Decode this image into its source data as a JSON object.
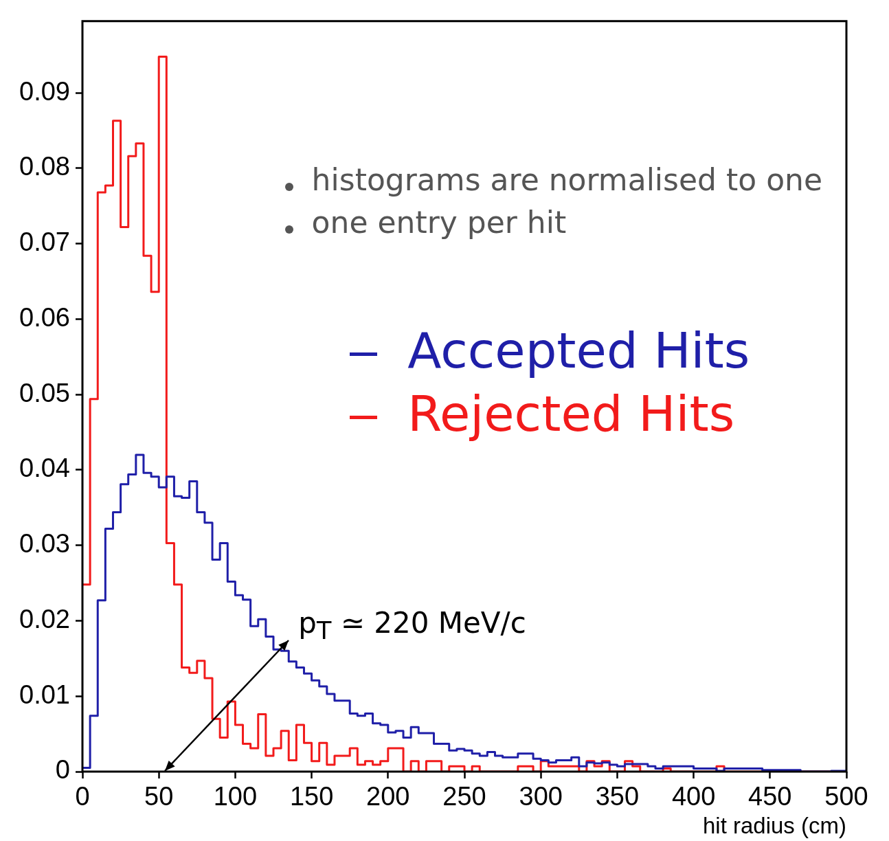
{
  "chart_data": {
    "type": "histogram",
    "xlabel": "hit radius (cm)",
    "bins": [
      0,
      5,
      10,
      15,
      20,
      25,
      30,
      35,
      40,
      45,
      50,
      55,
      60,
      65,
      70,
      75,
      80,
      85,
      90,
      95,
      100,
      105,
      110,
      115,
      120,
      125,
      130,
      135,
      140,
      145,
      150,
      155,
      160,
      165,
      170,
      175,
      180,
      185,
      190,
      195,
      200,
      205,
      210,
      215,
      220,
      225,
      230,
      235,
      240,
      245,
      250,
      255,
      260,
      265,
      270,
      275,
      280,
      285,
      290,
      295,
      300,
      305,
      310,
      315,
      320,
      325,
      330,
      335,
      340,
      345,
      350,
      355,
      360,
      365,
      370,
      375,
      380,
      385,
      390,
      395,
      400,
      405,
      410,
      415,
      420,
      425,
      430,
      435,
      440,
      445,
      450,
      455,
      460,
      465,
      470,
      475,
      480,
      485,
      490,
      495,
      500
    ],
    "series": [
      {
        "name": "Accepted Hits",
        "color": "#1f1fa8",
        "values": [
          0.0005,
          0.0074,
          0.0227,
          0.0322,
          0.0344,
          0.0381,
          0.0394,
          0.042,
          0.0396,
          0.0391,
          0.0377,
          0.0391,
          0.0365,
          0.0363,
          0.0385,
          0.0344,
          0.033,
          0.0281,
          0.0303,
          0.0252,
          0.0234,
          0.0228,
          0.0193,
          0.0202,
          0.0179,
          0.0162,
          0.016,
          0.0146,
          0.0138,
          0.013,
          0.0121,
          0.0113,
          0.0103,
          0.0094,
          0.0094,
          0.0077,
          0.0074,
          0.0077,
          0.0064,
          0.0062,
          0.0052,
          0.0054,
          0.0045,
          0.0059,
          0.0051,
          0.0051,
          0.0037,
          0.0037,
          0.0028,
          0.003,
          0.0028,
          0.0024,
          0.0021,
          0.0026,
          0.0021,
          0.0019,
          0.0019,
          0.0024,
          0.0024,
          0.0017,
          0.0015,
          0.0012,
          0.0015,
          0.0015,
          0.0019,
          0.0007,
          0.0012,
          0.0011,
          0.0012,
          0.0009,
          0.0007,
          0.001,
          0.001,
          0.001,
          0.0007,
          0.0004,
          0.0007,
          0.0007,
          0.0007,
          0.0007,
          0.0004,
          0.0004,
          0.0004,
          0.0001,
          0.0004,
          0.0004,
          0.0004,
          0.0004,
          0.0004,
          0.0002,
          0.0002,
          0.0002,
          0.0002,
          0.0002,
          0,
          0,
          0,
          0,
          0.0001,
          0.0001
        ]
      },
      {
        "name": "Rejected Hits",
        "color": "#f21b1b",
        "values": [
          0.0248,
          0.0494,
          0.0768,
          0.0777,
          0.0863,
          0.0722,
          0.0816,
          0.0833,
          0.0684,
          0.0636,
          0.0948,
          0.0303,
          0.0248,
          0.0138,
          0.0131,
          0.0147,
          0.0124,
          0.007,
          0.0045,
          0.0093,
          0.0062,
          0.0037,
          0.0031,
          0.0076,
          0.0021,
          0.0031,
          0.0054,
          0.0015,
          0.0062,
          0.0038,
          0.0014,
          0.0038,
          0.0009,
          0.0021,
          0.0021,
          0.0031,
          0.0009,
          0.0014,
          0.0009,
          0.0014,
          0.0031,
          0.0031,
          0,
          0.0014,
          0,
          0.0014,
          0.0014,
          0,
          0.0007,
          0.0007,
          0,
          0.0007,
          0,
          0,
          0,
          0,
          0,
          0.0007,
          0.0007,
          0,
          0.0014,
          0.0007,
          0.0007,
          0.0007,
          0.0007,
          0,
          0.0014,
          0.0007,
          0.0014,
          0,
          0,
          0.0014,
          0.0007,
          0,
          0,
          0,
          0.0004,
          0,
          0,
          0,
          0,
          0,
          0,
          0.0007,
          0,
          0,
          0,
          0,
          0,
          0,
          0,
          0,
          0,
          0,
          0,
          0,
          0,
          0,
          0,
          0
        ]
      }
    ],
    "xlim": [
      0,
      500
    ],
    "xticks": [
      0,
      50,
      100,
      150,
      200,
      250,
      300,
      350,
      400,
      450,
      500
    ],
    "ylim": [
      0,
      0.0995
    ],
    "yticks": [
      0,
      0.01,
      0.02,
      0.03,
      0.04,
      0.05,
      0.06,
      0.07,
      0.08,
      0.09
    ],
    "legend": "right",
    "annotations": [
      "histograms are normalised to one",
      "one entry per hit",
      "p$_{T}$ ≃ 220 MeV/c"
    ]
  }
}
